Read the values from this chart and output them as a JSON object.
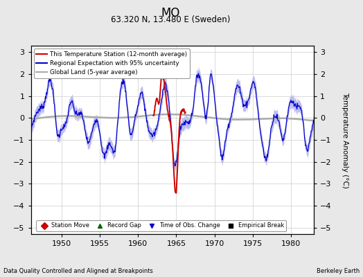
{
  "title": "MO",
  "subtitle": "63.320 N, 13.480 E (Sweden)",
  "xlabel_left": "Data Quality Controlled and Aligned at Breakpoints",
  "xlabel_right": "Berkeley Earth",
  "ylabel": "Temperature Anomaly (°C)",
  "xlim": [
    1946,
    1983
  ],
  "ylim": [
    -5.3,
    3.3
  ],
  "yticks": [
    -5,
    -4,
    -3,
    -2,
    -1,
    0,
    1,
    2,
    3
  ],
  "xticks": [
    1950,
    1955,
    1960,
    1965,
    1970,
    1975,
    1980
  ],
  "background_color": "#e8e8e8",
  "axes_bg_color": "#ffffff",
  "regional_color": "#0000cc",
  "regional_uncertainty_color": "#aaaaee",
  "station_color": "#cc0000",
  "global_color": "#aaaaaa",
  "legend_entries": [
    "This Temperature Station (12-month average)",
    "Regional Expectation with 95% uncertainty",
    "Global Land (5-year average)"
  ],
  "marker_legend": [
    {
      "label": "Station Move",
      "color": "#cc0000",
      "marker": "D"
    },
    {
      "label": "Record Gap",
      "color": "#006600",
      "marker": "^"
    },
    {
      "label": "Time of Obs. Change",
      "color": "#0000cc",
      "marker": "v"
    },
    {
      "label": "Empirical Break",
      "color": "#000000",
      "marker": "s"
    }
  ]
}
